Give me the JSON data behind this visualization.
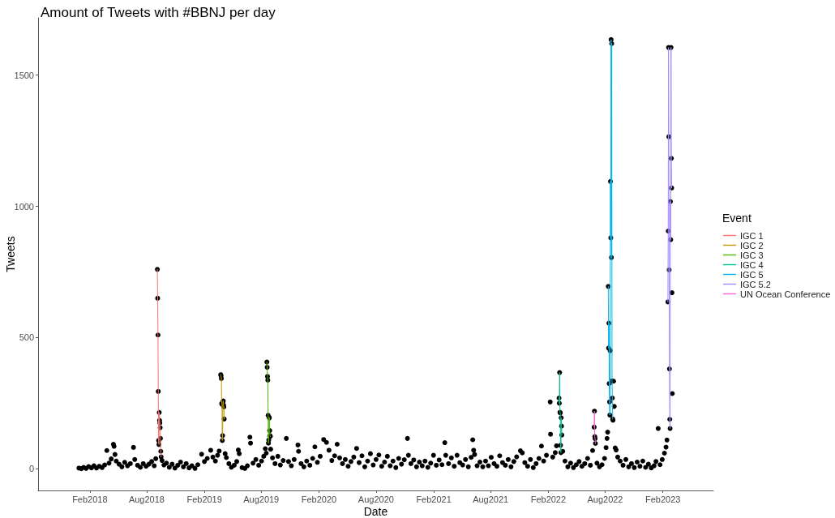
{
  "chart_data": {
    "type": "scatter",
    "title": "Amount of Tweets with #BBNJ per day",
    "xlabel": "Date",
    "ylabel": "Tweets",
    "legend_title": "Event",
    "legend": "right",
    "grid": false,
    "marker": "circle",
    "xlim": [
      "2017-08-20",
      "2023-07-12"
    ],
    "xticks": [
      {
        "value": "2018-02-01",
        "label": "Feb2018"
      },
      {
        "value": "2018-08-01",
        "label": "Aug2018"
      },
      {
        "value": "2019-02-01",
        "label": "Feb2019"
      },
      {
        "value": "2019-08-01",
        "label": "Aug2019"
      },
      {
        "value": "2020-02-01",
        "label": "Feb2020"
      },
      {
        "value": "2020-08-01",
        "label": "Aug2020"
      },
      {
        "value": "2021-02-01",
        "label": "Feb2021"
      },
      {
        "value": "2021-08-01",
        "label": "Aug2021"
      },
      {
        "value": "2022-02-01",
        "label": "Feb2022"
      },
      {
        "value": "2022-08-01",
        "label": "Aug2022"
      },
      {
        "value": "2023-02-01",
        "label": "Feb2023"
      }
    ],
    "ylim": [
      -82,
      1718
    ],
    "yticks": [
      0,
      500,
      1000,
      1500
    ],
    "series": [
      {
        "color": "#000000",
        "x": [
          "2017-12-28",
          "2018-01-05",
          "2018-01-12",
          "2018-01-20",
          "2018-01-28",
          "2018-02-06",
          "2018-02-14",
          "2018-02-22",
          "2018-03-03",
          "2018-03-12",
          "2018-03-20",
          "2018-03-27",
          "2018-04-03",
          "2018-04-10",
          "2018-04-17",
          "2018-04-19",
          "2018-04-22",
          "2018-04-26",
          "2018-05-05",
          "2018-05-14",
          "2018-05-23",
          "2018-06-01",
          "2018-06-10",
          "2018-06-20",
          "2018-06-24",
          "2018-07-03",
          "2018-07-12",
          "2018-07-21",
          "2018-07-30",
          "2018-08-08",
          "2018-08-17",
          "2018-08-25",
          "2018-08-30",
          "2018-09-04",
          "2018-09-05",
          "2018-09-06",
          "2018-09-07",
          "2018-09-08",
          "2018-09-09",
          "2018-09-10",
          "2018-09-11",
          "2018-09-12",
          "2018-09-13",
          "2018-09-14",
          "2018-09-15",
          "2018-09-16",
          "2018-09-19",
          "2018-09-25",
          "2018-10-03",
          "2018-10-12",
          "2018-10-21",
          "2018-10-30",
          "2018-11-08",
          "2018-11-17",
          "2018-11-26",
          "2018-12-05",
          "2018-12-14",
          "2018-12-23",
          "2019-01-02",
          "2019-01-11",
          "2019-01-23",
          "2019-02-01",
          "2019-02-10",
          "2019-02-21",
          "2019-02-28",
          "2019-03-08",
          "2019-03-15",
          "2019-03-20",
          "2019-03-25",
          "2019-03-26",
          "2019-03-27",
          "2019-03-28",
          "2019-03-29",
          "2019-03-30",
          "2019-03-31",
          "2019-04-01",
          "2019-04-02",
          "2019-04-03",
          "2019-04-04",
          "2019-04-05",
          "2019-04-08",
          "2019-04-12",
          "2019-04-20",
          "2019-04-28",
          "2019-05-07",
          "2019-05-15",
          "2019-05-20",
          "2019-05-23",
          "2019-06-01",
          "2019-06-10",
          "2019-06-18",
          "2019-06-26",
          "2019-06-28",
          "2019-07-06",
          "2019-07-15",
          "2019-07-24",
          "2019-08-02",
          "2019-08-09",
          "2019-08-14",
          "2019-08-17",
          "2019-08-19",
          "2019-08-20",
          "2019-08-21",
          "2019-08-22",
          "2019-08-23",
          "2019-08-24",
          "2019-08-25",
          "2019-08-26",
          "2019-08-27",
          "2019-08-28",
          "2019-08-29",
          "2019-08-30",
          "2019-08-31",
          "2019-09-06",
          "2019-09-14",
          "2019-09-23",
          "2019-10-01",
          "2019-10-10",
          "2019-10-20",
          "2019-10-27",
          "2019-11-05",
          "2019-11-14",
          "2019-11-26",
          "2019-11-28",
          "2019-12-06",
          "2019-12-15",
          "2019-12-24",
          "2020-01-03",
          "2020-01-12",
          "2020-01-19",
          "2020-01-27",
          "2020-02-05",
          "2020-02-16",
          "2020-02-25",
          "2020-03-04",
          "2020-03-13",
          "2020-03-22",
          "2020-03-30",
          "2020-04-07",
          "2020-04-16",
          "2020-04-25",
          "2020-05-04",
          "2020-05-13",
          "2020-05-22",
          "2020-05-31",
          "2020-06-08",
          "2020-06-17",
          "2020-06-26",
          "2020-07-05",
          "2020-07-14",
          "2020-07-23",
          "2020-08-01",
          "2020-08-10",
          "2020-08-19",
          "2020-08-28",
          "2020-09-06",
          "2020-09-15",
          "2020-09-24",
          "2020-10-03",
          "2020-10-12",
          "2020-10-21",
          "2020-10-30",
          "2020-11-09",
          "2020-11-12",
          "2020-11-20",
          "2020-11-29",
          "2020-12-08",
          "2020-12-17",
          "2020-12-26",
          "2021-01-04",
          "2021-01-13",
          "2021-01-22",
          "2021-01-31",
          "2021-02-09",
          "2021-02-18",
          "2021-02-27",
          "2021-03-08",
          "2021-03-11",
          "2021-03-20",
          "2021-03-29",
          "2021-04-07",
          "2021-04-16",
          "2021-04-25",
          "2021-05-04",
          "2021-05-13",
          "2021-05-22",
          "2021-05-31",
          "2021-06-05",
          "2021-06-08",
          "2021-06-11",
          "2021-06-19",
          "2021-06-28",
          "2021-07-07",
          "2021-07-16",
          "2021-07-25",
          "2021-08-03",
          "2021-08-12",
          "2021-08-21",
          "2021-08-30",
          "2021-09-08",
          "2021-09-17",
          "2021-09-26",
          "2021-10-05",
          "2021-10-14",
          "2021-10-23",
          "2021-11-04",
          "2021-11-10",
          "2021-11-18",
          "2021-11-27",
          "2021-12-06",
          "2021-12-15",
          "2021-12-24",
          "2022-01-02",
          "2022-01-10",
          "2022-01-17",
          "2022-01-26",
          "2022-02-07",
          "2022-02-08",
          "2022-02-15",
          "2022-02-23",
          "2022-02-27",
          "2022-03-07",
          "2022-03-08",
          "2022-03-09",
          "2022-03-10",
          "2022-03-11",
          "2022-03-12",
          "2022-03-13",
          "2022-03-14",
          "2022-03-15",
          "2022-03-16",
          "2022-03-19",
          "2022-03-26",
          "2022-04-04",
          "2022-04-13",
          "2022-04-22",
          "2022-05-01",
          "2022-05-10",
          "2022-05-19",
          "2022-05-28",
          "2022-06-06",
          "2022-06-15",
          "2022-06-22",
          "2022-06-27",
          "2022-06-28",
          "2022-06-29",
          "2022-06-30",
          "2022-07-01",
          "2022-07-06",
          "2022-07-14",
          "2022-07-22",
          "2022-07-30",
          "2022-08-04",
          "2022-08-07",
          "2022-08-09",
          "2022-08-11",
          "2022-08-12",
          "2022-08-13",
          "2022-08-14",
          "2022-08-15",
          "2022-08-16",
          "2022-08-17",
          "2022-08-18",
          "2022-08-19",
          "2022-08-20",
          "2022-08-21",
          "2022-08-22",
          "2022-08-23",
          "2022-08-24",
          "2022-08-25",
          "2022-08-26",
          "2022-08-28",
          "2022-08-30",
          "2022-09-02",
          "2022-09-05",
          "2022-09-10",
          "2022-09-18",
          "2022-09-27",
          "2022-10-06",
          "2022-10-15",
          "2022-10-24",
          "2022-11-02",
          "2022-11-11",
          "2022-11-20",
          "2022-11-29",
          "2022-12-08",
          "2022-12-17",
          "2022-12-26",
          "2023-01-04",
          "2023-01-10",
          "2023-01-17",
          "2023-01-23",
          "2023-01-30",
          "2023-02-06",
          "2023-02-11",
          "2023-02-14",
          "2023-02-17",
          "2023-02-18",
          "2023-02-19",
          "2023-02-20",
          "2023-02-21",
          "2023-02-22",
          "2023-02-23",
          "2023-02-24",
          "2023-02-25",
          "2023-02-26",
          "2023-02-27",
          "2023-02-28",
          "2023-03-01",
          "2023-03-02",
          "2023-03-03"
        ],
        "values": [
          3,
          1,
          6,
          2,
          9,
          4,
          12,
          3,
          10,
          5,
          15,
          70,
          22,
          38,
          94,
          86,
          55,
          30,
          18,
          8,
          25,
          12,
          20,
          82,
          36,
          14,
          6,
          20,
          10,
          18,
          28,
          12,
          39,
          760,
          650,
          510,
          295,
          108,
          93,
          215,
          185,
          175,
          157,
          116,
          67,
          46,
          32,
          15,
          22,
          6,
          18,
          3,
          14,
          26,
          8,
          20,
          4,
          12,
          2,
          16,
          56,
          28,
          40,
          71,
          45,
          30,
          52,
          68,
          359,
          354,
          344,
          249,
          246,
          108,
          127,
          255,
          259,
          243,
          236,
          190,
          58,
          43,
          20,
          6,
          14,
          28,
          72,
          58,
          5,
          2,
          12,
          121,
          98,
          22,
          36,
          14,
          30,
          48,
          77,
          60,
          407,
          387,
          352,
          338,
          204,
          98,
          110,
          197,
          194,
          146,
          127,
          124,
          75,
          42,
          20,
          48,
          15,
          32,
          116,
          28,
          12,
          36,
          91,
          67,
          20,
          8,
          30,
          14,
          40,
          84,
          25,
          48,
          112,
          101,
          71,
          32,
          50,
          94,
          42,
          20,
          36,
          10,
          28,
          45,
          78,
          24,
          50,
          8,
          30,
          58,
          15,
          36,
          53,
          10,
          26,
          48,
          12,
          30,
          5,
          40,
          18,
          35,
          116,
          52,
          20,
          34,
          8,
          26,
          12,
          30,
          6,
          22,
          52,
          14,
          34,
          16,
          100,
          52,
          20,
          42,
          10,
          52,
          24,
          15,
          36,
          8,
          44,
          111,
          71,
          55,
          12,
          26,
          8,
          30,
          12,
          44,
          20,
          10,
          50,
          24,
          14,
          36,
          8,
          28,
          46,
          69,
          61,
          24,
          10,
          36,
          5,
          20,
          40,
          87,
          30,
          52,
          255,
          132,
          45,
          62,
          88,
          270,
          250,
          367,
          216,
          213,
          90,
          62,
          195,
          163,
          129,
          67,
          30,
          8,
          22,
          5,
          16,
          28,
          10,
          20,
          40,
          14,
          70,
          159,
          220,
          123,
          115,
          97,
          22,
          8,
          16,
          40,
          81,
          116,
          140,
          695,
          460,
          555,
          325,
          255,
          205,
          450,
          1095,
          880,
          1635,
          805,
          1620,
          335,
          270,
          190,
          185,
          334,
          238,
          80,
          72,
          45,
          30,
          14,
          36,
          8,
          20,
          5,
          26,
          10,
          30,
          6,
          18,
          4,
          12,
          28,
          154,
          16,
          36,
          60,
          83,
          110,
          636,
          906,
          1605,
          1265,
          758,
          381,
          189,
          154,
          1018,
          873,
          1605,
          1183,
          1070,
          671,
          287
        ]
      },
      {
        "type": "line",
        "name": "IGC 1",
        "color": "#f8766d",
        "marker": "none",
        "x": [
          "2018-09-04",
          "2018-09-05",
          "2018-09-06",
          "2018-09-07",
          "2018-09-08",
          "2018-09-09",
          "2018-09-10",
          "2018-09-11",
          "2018-09-12",
          "2018-09-13",
          "2018-09-14",
          "2018-09-15",
          "2018-09-16"
        ],
        "values": [
          760,
          650,
          510,
          295,
          108,
          93,
          215,
          185,
          175,
          157,
          116,
          67,
          46
        ]
      },
      {
        "type": "line",
        "name": "IGC 2",
        "color": "#c49a00",
        "marker": "none",
        "x": [
          "2019-03-25",
          "2019-03-26",
          "2019-03-27",
          "2019-03-28",
          "2019-03-29",
          "2019-03-30",
          "2019-03-31",
          "2019-04-01",
          "2019-04-02",
          "2019-04-03",
          "2019-04-04",
          "2019-04-05"
        ],
        "values": [
          359,
          354,
          344,
          249,
          246,
          108,
          127,
          255,
          259,
          243,
          236,
          190
        ]
      },
      {
        "type": "line",
        "name": "IGC 3",
        "color": "#53b400",
        "marker": "none",
        "x": [
          "2019-08-19",
          "2019-08-20",
          "2019-08-21",
          "2019-08-22",
          "2019-08-23",
          "2019-08-24",
          "2019-08-25",
          "2019-08-26",
          "2019-08-27",
          "2019-08-28",
          "2019-08-29",
          "2019-08-30"
        ],
        "values": [
          407,
          387,
          352,
          338,
          204,
          98,
          110,
          197,
          194,
          146,
          127,
          124
        ]
      },
      {
        "type": "line",
        "name": "IGC 4",
        "color": "#00c094",
        "marker": "none",
        "x": [
          "2022-03-07",
          "2022-03-08",
          "2022-03-09",
          "2022-03-10",
          "2022-03-11",
          "2022-03-12",
          "2022-03-13",
          "2022-03-14",
          "2022-03-15",
          "2022-03-16"
        ],
        "values": [
          270,
          250,
          367,
          216,
          213,
          90,
          62,
          195,
          163,
          129
        ]
      },
      {
        "type": "line",
        "name": "IGC 5",
        "color": "#00b6eb",
        "marker": "none",
        "x": [
          "2022-08-11",
          "2022-08-12",
          "2022-08-13",
          "2022-08-14",
          "2022-08-15",
          "2022-08-16",
          "2022-08-17",
          "2022-08-18",
          "2022-08-19",
          "2022-08-20",
          "2022-08-21",
          "2022-08-22",
          "2022-08-23",
          "2022-08-24",
          "2022-08-25"
        ],
        "values": [
          695,
          460,
          555,
          325,
          255,
          205,
          450,
          1095,
          880,
          1635,
          805,
          1620,
          335,
          270,
          190
        ]
      },
      {
        "type": "line",
        "name": "IGC 5.2",
        "color": "#a58aff",
        "marker": "none",
        "x": [
          "2023-02-17",
          "2023-02-18",
          "2023-02-19",
          "2023-02-20",
          "2023-02-21",
          "2023-02-22",
          "2023-02-23",
          "2023-02-24",
          "2023-02-25",
          "2023-02-26",
          "2023-02-27",
          "2023-02-28",
          "2023-03-01"
        ],
        "values": [
          636,
          906,
          1605,
          1265,
          758,
          381,
          189,
          154,
          1018,
          873,
          1605,
          1183,
          1070
        ]
      },
      {
        "type": "line",
        "name": "UN Ocean Conference",
        "color": "#fb61d7",
        "marker": "none",
        "x": [
          "2022-06-27",
          "2022-06-28",
          "2022-06-29",
          "2022-06-30",
          "2022-07-01"
        ],
        "values": [
          159,
          220,
          123,
          115,
          97
        ]
      }
    ]
  }
}
